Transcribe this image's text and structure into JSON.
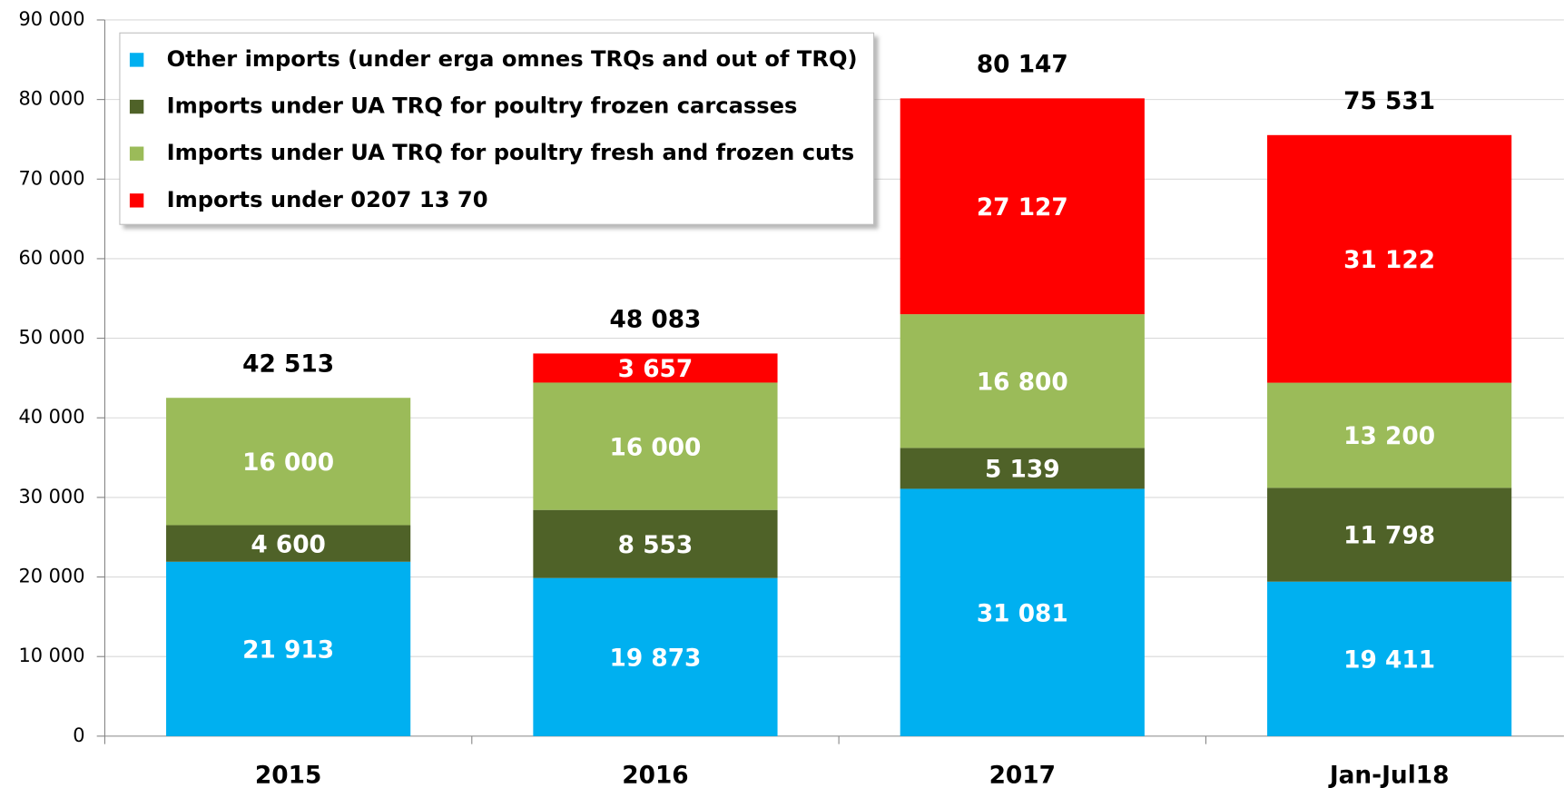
{
  "chart_data": {
    "type": "stacked_bar",
    "categories": [
      "2015",
      "2016",
      "2017",
      "Jan-Jul18"
    ],
    "series": [
      {
        "name": "Other imports (under erga omnes TRQs and out of TRQ)",
        "color": "#00b0f0",
        "values": [
          21913,
          19873,
          31081,
          19411
        ],
        "value_labels": [
          "21 913",
          "19 873",
          "31 081",
          "19 411"
        ]
      },
      {
        "name": "Imports under UA TRQ for poultry frozen carcasses",
        "color": "#4f6228",
        "values": [
          4600,
          8553,
          5139,
          11798
        ],
        "value_labels": [
          "4 600",
          "8 553",
          "5 139",
          "11 798"
        ]
      },
      {
        "name": "Imports under UA TRQ for poultry fresh and frozen cuts",
        "color": "#9bbb59",
        "values": [
          16000,
          16000,
          16800,
          13200
        ],
        "value_labels": [
          "16 000",
          "16 000",
          "16 800",
          "13 200"
        ]
      },
      {
        "name": "Imports under 0207 13 70",
        "color": "#ff0000",
        "values": [
          null,
          3657,
          27127,
          31122
        ],
        "value_labels": [
          null,
          "3 657",
          "27 127",
          "31 122"
        ]
      }
    ],
    "totals": [
      42513,
      48083,
      80147,
      75531
    ],
    "totals_labels": [
      "42 513",
      "48 083",
      "80 147",
      "75 531"
    ],
    "ylim": [
      0,
      90000
    ],
    "yticks": [
      0,
      {
        "value": 10000,
        "label": "10 000"
      },
      {
        "value": 20000,
        "label": "20 000"
      },
      {
        "value": 30000,
        "label": "30 000"
      },
      {
        "value": 40000,
        "label": "40 000"
      },
      {
        "value": 50000,
        "label": "50 000"
      },
      {
        "value": 60000,
        "label": "60 000"
      },
      {
        "value": 70000,
        "label": "70 000"
      },
      {
        "value": 80000,
        "label": "80 000"
      },
      {
        "value": 90000,
        "label": "90 000"
      }
    ],
    "grid": true,
    "legend": "top-left"
  }
}
